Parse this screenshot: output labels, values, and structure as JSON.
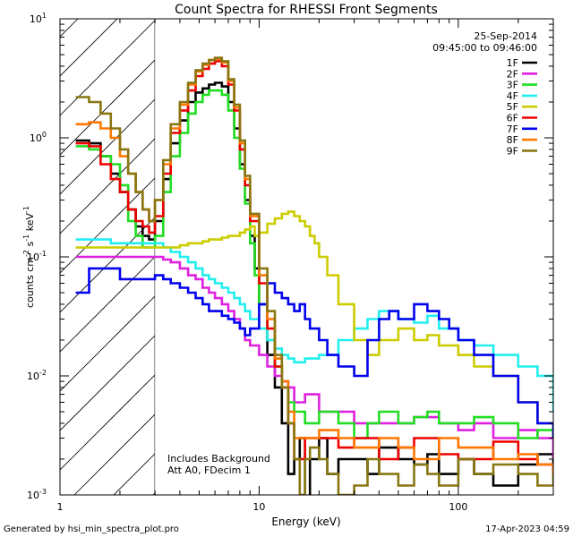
{
  "chart_data": {
    "type": "line",
    "title": "Count Spectra for RHESSI Front Segments",
    "xlabel": "Energy (keV)",
    "ylabel": "counts cm",
    "ylabel_sup1": "-2",
    "ylabel_mid": " s",
    "ylabel_sup2": "-1",
    "ylabel_end": " keV",
    "ylabel_sup3": "-1",
    "x_scale": "log",
    "y_scale": "log",
    "xlim": [
      1.0,
      300.0
    ],
    "ylim": [
      0.001,
      10.0
    ],
    "x_ticks": [
      {
        "value": 1,
        "label": "1"
      },
      {
        "value": 10,
        "label": "10"
      },
      {
        "value": 100,
        "label": "100"
      }
    ],
    "y_ticks": [
      {
        "value": 0.001,
        "base": "10",
        "exp": "-3"
      },
      {
        "value": 0.01,
        "base": "10",
        "exp": "-2"
      },
      {
        "value": 0.1,
        "base": "10",
        "exp": "-1"
      },
      {
        "value": 1,
        "base": "10",
        "exp": "0"
      },
      {
        "value": 10,
        "base": "10",
        "exp": "1"
      }
    ],
    "date": "25-Sep-2014",
    "time_range": "09:45:00 to 09:46:00",
    "annotation_lines": [
      "Includes Background",
      "Att A0, FDecim 1"
    ],
    "hatched_region": {
      "x_min": 1.0,
      "x_max": 3.0
    },
    "footer_left": "Generated by hsi_min_spectra_plot.pro",
    "footer_right": "17-Apr-2023 04:59",
    "legend_position": "top-right",
    "series": [
      {
        "name": "1F",
        "color": "#000000",
        "x": [
          1.2,
          1.4,
          1.6,
          1.8,
          2.0,
          2.2,
          2.4,
          2.6,
          2.8,
          3.0,
          3.3,
          3.6,
          4.0,
          4.4,
          4.8,
          5.2,
          5.6,
          6.0,
          6.5,
          7.0,
          7.5,
          8.0,
          8.5,
          9.0,
          9.5,
          10,
          11,
          12,
          13,
          14,
          15,
          16,
          17,
          18,
          20,
          22,
          25,
          30,
          35,
          40,
          50,
          60,
          70,
          80,
          100,
          120,
          150,
          200,
          250,
          300
        ],
        "values": [
          0.95,
          0.9,
          0.7,
          0.5,
          0.35,
          0.25,
          0.18,
          0.15,
          0.14,
          0.2,
          0.45,
          0.9,
          1.4,
          2.0,
          2.4,
          2.6,
          2.8,
          2.9,
          2.7,
          2.0,
          1.2,
          0.6,
          0.3,
          0.15,
          0.08,
          0.04,
          0.015,
          0.008,
          0.004,
          0.0015,
          0.002,
          0.003,
          0.0008,
          0.002,
          0.003,
          0.0015,
          0.002,
          0.002,
          0.0015,
          0.0025,
          0.002,
          0.0018,
          0.0022,
          0.0015,
          0.002,
          0.0015,
          0.0012,
          0.0018,
          0.0022,
          0.0015
        ]
      },
      {
        "name": "2F",
        "color": "#e020e0",
        "x": [
          1.2,
          1.4,
          1.6,
          1.8,
          2.0,
          2.2,
          2.4,
          2.6,
          2.8,
          3.0,
          3.3,
          3.6,
          4.0,
          4.4,
          4.8,
          5.2,
          5.6,
          6.0,
          6.5,
          7.0,
          7.5,
          8.0,
          8.5,
          9.0,
          10,
          11,
          12,
          13,
          14,
          15,
          17,
          20,
          25,
          30,
          40,
          50,
          60,
          80,
          100,
          120,
          150,
          200,
          250,
          300
        ],
        "values": [
          0.1,
          0.1,
          0.1,
          0.1,
          0.1,
          0.1,
          0.1,
          0.1,
          0.1,
          0.1,
          0.095,
          0.09,
          0.08,
          0.07,
          0.065,
          0.055,
          0.05,
          0.045,
          0.04,
          0.035,
          0.03,
          0.025,
          0.02,
          0.018,
          0.015,
          0.012,
          0.01,
          0.009,
          0.008,
          0.006,
          0.007,
          0.005,
          0.005,
          0.004,
          0.004,
          0.004,
          0.0045,
          0.004,
          0.0035,
          0.004,
          0.003,
          0.0035,
          0.003,
          0.002
        ]
      },
      {
        "name": "3F",
        "color": "#22dd22",
        "x": [
          1.2,
          1.4,
          1.6,
          1.8,
          2.0,
          2.2,
          2.4,
          2.6,
          2.8,
          3.0,
          3.3,
          3.6,
          4.0,
          4.4,
          4.8,
          5.2,
          5.6,
          6.0,
          6.5,
          7.0,
          7.5,
          8.0,
          8.5,
          9.0,
          9.5,
          10,
          11,
          12,
          13,
          14,
          15,
          17,
          20,
          25,
          30,
          35,
          40,
          50,
          60,
          70,
          80,
          100,
          120,
          150,
          200,
          250,
          300
        ],
        "values": [
          0.85,
          0.8,
          0.7,
          0.6,
          0.4,
          0.2,
          0.15,
          0.12,
          0.12,
          0.15,
          0.35,
          0.7,
          1.1,
          1.6,
          2.0,
          2.3,
          2.5,
          2.5,
          2.3,
          1.7,
          1.0,
          0.55,
          0.28,
          0.13,
          0.07,
          0.04,
          0.02,
          0.012,
          0.008,
          0.006,
          0.005,
          0.004,
          0.005,
          0.004,
          0.003,
          0.004,
          0.005,
          0.004,
          0.0045,
          0.005,
          0.004,
          0.004,
          0.0045,
          0.004,
          0.003,
          0.0035,
          0.003
        ]
      },
      {
        "name": "4F",
        "color": "#22eeee",
        "x": [
          1.2,
          1.4,
          1.6,
          1.8,
          2.0,
          2.2,
          2.4,
          2.6,
          2.8,
          3.0,
          3.3,
          3.6,
          4.0,
          4.4,
          4.8,
          5.2,
          5.6,
          6.0,
          6.5,
          7.0,
          7.5,
          8.0,
          8.5,
          9.0,
          10,
          11,
          12,
          13,
          14,
          15,
          17,
          20,
          25,
          30,
          35,
          40,
          50,
          60,
          70,
          80,
          100,
          120,
          150,
          200,
          250,
          300
        ],
        "values": [
          0.14,
          0.14,
          0.14,
          0.13,
          0.13,
          0.13,
          0.13,
          0.13,
          0.13,
          0.13,
          0.12,
          0.11,
          0.1,
          0.09,
          0.08,
          0.07,
          0.065,
          0.06,
          0.055,
          0.05,
          0.045,
          0.04,
          0.035,
          0.03,
          0.025,
          0.02,
          0.017,
          0.015,
          0.014,
          0.013,
          0.014,
          0.015,
          0.02,
          0.025,
          0.03,
          0.035,
          0.03,
          0.028,
          0.032,
          0.025,
          0.02,
          0.018,
          0.015,
          0.012,
          0.01,
          0.005
        ]
      },
      {
        "name": "5F",
        "color": "#cccc00",
        "x": [
          1.2,
          1.4,
          1.6,
          1.8,
          2.0,
          2.2,
          2.4,
          2.6,
          2.8,
          3.0,
          3.3,
          3.6,
          4.0,
          4.4,
          4.8,
          5.2,
          5.6,
          6.0,
          6.5,
          7.0,
          7.5,
          8.0,
          8.5,
          9.0,
          9.5,
          10,
          11,
          12,
          13,
          14,
          15,
          16,
          17,
          18,
          19,
          20,
          22,
          25,
          30,
          35,
          40,
          50,
          60,
          70,
          80,
          100,
          120,
          150,
          200,
          250,
          300
        ],
        "values": [
          0.12,
          0.12,
          0.12,
          0.12,
          0.12,
          0.12,
          0.12,
          0.12,
          0.12,
          0.12,
          0.12,
          0.12,
          0.125,
          0.13,
          0.13,
          0.135,
          0.14,
          0.14,
          0.145,
          0.15,
          0.15,
          0.16,
          0.17,
          0.18,
          0.15,
          0.16,
          0.19,
          0.21,
          0.23,
          0.24,
          0.22,
          0.2,
          0.18,
          0.15,
          0.13,
          0.1,
          0.07,
          0.04,
          0.02,
          0.015,
          0.02,
          0.025,
          0.02,
          0.022,
          0.018,
          0.015,
          0.012,
          0.01,
          0.006,
          0.004,
          0.003
        ]
      },
      {
        "name": "6F",
        "color": "#ee0000",
        "x": [
          1.2,
          1.4,
          1.6,
          1.8,
          2.0,
          2.2,
          2.4,
          2.6,
          2.8,
          3.0,
          3.3,
          3.6,
          4.0,
          4.4,
          4.8,
          5.2,
          5.6,
          6.0,
          6.5,
          7.0,
          7.5,
          8.0,
          8.5,
          9.0,
          10,
          11,
          12,
          13,
          14,
          15,
          17,
          20,
          25,
          30,
          40,
          50,
          60,
          80,
          100,
          150,
          200,
          250,
          300
        ],
        "values": [
          0.9,
          0.85,
          0.6,
          0.45,
          0.35,
          0.25,
          0.2,
          0.18,
          0.16,
          0.22,
          0.5,
          1.1,
          1.7,
          2.5,
          3.3,
          3.8,
          4.2,
          4.4,
          4.0,
          2.8,
          1.7,
          0.8,
          0.4,
          0.2,
          0.06,
          0.025,
          0.012,
          0.008,
          0.004,
          0.002,
          0.003,
          0.003,
          0.0025,
          0.003,
          0.002,
          0.0025,
          0.003,
          0.0022,
          0.002,
          0.0028,
          0.002,
          0.0018,
          0.0015
        ]
      },
      {
        "name": "7F",
        "color": "#0000ee",
        "x": [
          1.2,
          1.4,
          1.6,
          1.8,
          2.0,
          2.2,
          2.4,
          2.6,
          2.8,
          3.0,
          3.3,
          3.6,
          4.0,
          4.4,
          4.8,
          5.2,
          5.6,
          6.0,
          6.5,
          7.0,
          7.5,
          8.0,
          8.5,
          9.0,
          10,
          11,
          12,
          13,
          14,
          15,
          16,
          17,
          18,
          20,
          22,
          25,
          30,
          35,
          40,
          45,
          50,
          60,
          70,
          80,
          90,
          100,
          120,
          150,
          200,
          250,
          300
        ],
        "values": [
          0.05,
          0.08,
          0.08,
          0.08,
          0.065,
          0.065,
          0.065,
          0.065,
          0.065,
          0.07,
          0.065,
          0.06,
          0.055,
          0.05,
          0.045,
          0.04,
          0.035,
          0.035,
          0.032,
          0.03,
          0.028,
          0.025,
          0.022,
          0.025,
          0.04,
          0.06,
          0.05,
          0.045,
          0.04,
          0.035,
          0.04,
          0.03,
          0.025,
          0.02,
          0.015,
          0.012,
          0.01,
          0.02,
          0.03,
          0.035,
          0.03,
          0.04,
          0.035,
          0.03,
          0.025,
          0.02,
          0.015,
          0.01,
          0.006,
          0.004,
          0.003
        ]
      },
      {
        "name": "8F",
        "color": "#ff7700",
        "x": [
          1.2,
          1.4,
          1.6,
          1.8,
          2.0,
          2.2,
          2.4,
          2.6,
          2.8,
          3.0,
          3.3,
          3.6,
          4.0,
          4.4,
          4.8,
          5.2,
          5.6,
          6.0,
          6.5,
          7.0,
          7.5,
          8.0,
          8.5,
          9.0,
          10,
          11,
          12,
          13,
          14,
          15,
          17,
          20,
          25,
          30,
          40,
          50,
          60,
          80,
          100,
          150,
          200,
          250,
          300
        ],
        "values": [
          1.3,
          1.35,
          1.2,
          1.0,
          0.7,
          0.5,
          0.35,
          0.25,
          0.2,
          0.3,
          0.6,
          1.2,
          1.9,
          2.8,
          3.6,
          4.1,
          4.5,
          4.6,
          4.3,
          3.0,
          1.8,
          0.9,
          0.45,
          0.22,
          0.07,
          0.03,
          0.014,
          0.009,
          0.005,
          0.003,
          0.003,
          0.0035,
          0.003,
          0.0025,
          0.003,
          0.0025,
          0.002,
          0.003,
          0.0025,
          0.002,
          0.0022,
          0.0018,
          0.0015
        ]
      },
      {
        "name": "9F",
        "color": "#887711",
        "x": [
          1.2,
          1.4,
          1.6,
          1.8,
          2.0,
          2.2,
          2.4,
          2.6,
          2.8,
          3.0,
          3.3,
          3.6,
          4.0,
          4.4,
          4.8,
          5.2,
          5.6,
          6.0,
          6.5,
          7.0,
          7.5,
          8.0,
          8.5,
          9.0,
          10,
          11,
          12,
          13,
          14,
          15,
          16,
          17,
          18,
          20,
          22,
          25,
          30,
          35,
          40,
          50,
          60,
          70,
          80,
          100,
          120,
          150,
          200,
          250,
          300
        ],
        "values": [
          2.2,
          2.0,
          1.6,
          1.2,
          0.8,
          0.5,
          0.35,
          0.25,
          0.2,
          0.3,
          0.65,
          1.3,
          2.0,
          2.9,
          3.7,
          4.2,
          4.5,
          4.7,
          4.4,
          3.1,
          1.9,
          0.95,
          0.48,
          0.23,
          0.08,
          0.035,
          0.015,
          0.008,
          0.004,
          0.002,
          0.001,
          0.002,
          0.0025,
          0.002,
          0.0015,
          0.001,
          0.0012,
          0.002,
          0.0015,
          0.0012,
          0.0018,
          0.0015,
          0.0012,
          0.002,
          0.0015,
          0.0018,
          0.0015,
          0.0012,
          0.0015
        ]
      }
    ]
  }
}
